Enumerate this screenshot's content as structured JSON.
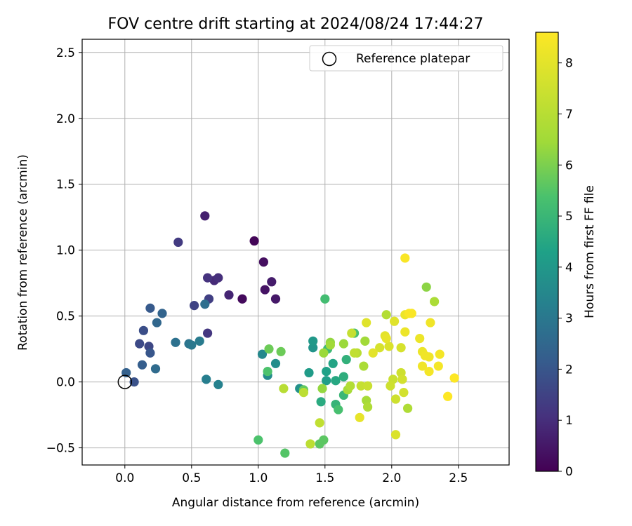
{
  "chart_data": {
    "type": "scatter",
    "title": "FOV centre drift starting at 2024/08/24 17:44:27",
    "xlabel": "Angular distance from reference (arcmin)",
    "ylabel": "Rotation from reference (arcmin)",
    "xlim": [
      -0.32,
      2.88
    ],
    "ylim": [
      -0.63,
      2.6
    ],
    "xticks": [
      0.0,
      0.5,
      1.0,
      1.5,
      2.0,
      2.5
    ],
    "yticks": [
      -0.5,
      0.0,
      0.5,
      1.0,
      1.5,
      2.0,
      2.5
    ],
    "xtick_labels": [
      "0.0",
      "0.5",
      "1.0",
      "1.5",
      "2.0",
      "2.5"
    ],
    "ytick_labels": [
      "−0.5",
      "0.0",
      "0.5",
      "1.0",
      "1.5",
      "2.0",
      "2.5"
    ],
    "grid": true,
    "legend": {
      "position": "top-right",
      "label": "Reference platepar"
    },
    "reference_point": {
      "x": 0.0,
      "y": 0.0
    },
    "colorbar": {
      "label": "Hours from first FF file",
      "min": 0.0,
      "max": 8.6,
      "ticks": [
        0,
        1,
        2,
        3,
        4,
        5,
        6,
        7,
        8
      ],
      "tick_labels": [
        "0",
        "1",
        "2",
        "3",
        "4",
        "5",
        "6",
        "7",
        "8"
      ],
      "colormap": "viridis"
    },
    "points": [
      {
        "x": 0.97,
        "y": 1.07,
        "h": 0.1
      },
      {
        "x": 0.88,
        "y": 0.63,
        "h": 0.2
      },
      {
        "x": 1.04,
        "y": 0.91,
        "h": 0.3
      },
      {
        "x": 1.05,
        "y": 0.7,
        "h": 0.4
      },
      {
        "x": 1.13,
        "y": 0.63,
        "h": 0.5
      },
      {
        "x": 1.1,
        "y": 0.76,
        "h": 0.6
      },
      {
        "x": 0.6,
        "y": 1.26,
        "h": 0.7
      },
      {
        "x": 0.78,
        "y": 0.66,
        "h": 0.8
      },
      {
        "x": 0.67,
        "y": 0.77,
        "h": 0.9
      },
      {
        "x": 0.7,
        "y": 0.79,
        "h": 1.0
      },
      {
        "x": 0.62,
        "y": 0.79,
        "h": 1.1
      },
      {
        "x": 0.62,
        "y": 0.37,
        "h": 1.2
      },
      {
        "x": 0.4,
        "y": 1.06,
        "h": 1.3
      },
      {
        "x": 0.63,
        "y": 0.63,
        "h": 1.4
      },
      {
        "x": 0.52,
        "y": 0.58,
        "h": 1.5
      },
      {
        "x": 0.18,
        "y": 0.27,
        "h": 1.6
      },
      {
        "x": 0.11,
        "y": 0.29,
        "h": 1.7
      },
      {
        "x": 0.14,
        "y": 0.39,
        "h": 1.8
      },
      {
        "x": 0.07,
        "y": 0.0,
        "h": 1.9
      },
      {
        "x": 0.19,
        "y": 0.22,
        "h": 2.0
      },
      {
        "x": 0.19,
        "y": 0.56,
        "h": 2.1
      },
      {
        "x": 0.13,
        "y": 0.13,
        "h": 2.2
      },
      {
        "x": 0.01,
        "y": 0.07,
        "h": 2.3
      },
      {
        "x": 0.28,
        "y": 0.52,
        "h": 2.4
      },
      {
        "x": 0.24,
        "y": 0.45,
        "h": 2.5
      },
      {
        "x": 0.23,
        "y": 0.1,
        "h": 2.6
      },
      {
        "x": 0.6,
        "y": 0.59,
        "h": 2.7
      },
      {
        "x": 0.38,
        "y": 0.3,
        "h": 2.8
      },
      {
        "x": 0.48,
        "y": 0.29,
        "h": 2.9
      },
      {
        "x": 0.5,
        "y": 0.28,
        "h": 3.0
      },
      {
        "x": 0.56,
        "y": 0.31,
        "h": 3.1
      },
      {
        "x": 0.61,
        "y": 0.02,
        "h": 3.2
      },
      {
        "x": 0.7,
        "y": -0.02,
        "h": 3.3
      },
      {
        "x": 1.03,
        "y": 0.21,
        "h": 3.5
      },
      {
        "x": 1.07,
        "y": 0.05,
        "h": 3.6
      },
      {
        "x": 1.13,
        "y": 0.14,
        "h": 3.7
      },
      {
        "x": 1.31,
        "y": -0.05,
        "h": 3.8
      },
      {
        "x": 1.41,
        "y": 0.26,
        "h": 3.9
      },
      {
        "x": 1.41,
        "y": 0.31,
        "h": 4.0
      },
      {
        "x": 1.38,
        "y": 0.07,
        "h": 4.1
      },
      {
        "x": 1.51,
        "y": 0.01,
        "h": 4.2
      },
      {
        "x": 1.51,
        "y": 0.08,
        "h": 4.3
      },
      {
        "x": 1.56,
        "y": 0.14,
        "h": 4.4
      },
      {
        "x": 1.58,
        "y": 0.01,
        "h": 4.5
      },
      {
        "x": 1.47,
        "y": -0.15,
        "h": 4.6
      },
      {
        "x": 1.64,
        "y": 0.04,
        "h": 4.7
      },
      {
        "x": 1.66,
        "y": 0.17,
        "h": 4.8
      },
      {
        "x": 1.58,
        "y": -0.17,
        "h": 4.9
      },
      {
        "x": 1.64,
        "y": -0.1,
        "h": 5.0
      },
      {
        "x": 1.52,
        "y": 0.25,
        "h": 5.1
      },
      {
        "x": 1.5,
        "y": 0.63,
        "h": 5.2
      },
      {
        "x": 1.72,
        "y": 0.37,
        "h": 5.3
      },
      {
        "x": 1.6,
        "y": -0.21,
        "h": 5.3
      },
      {
        "x": 1.07,
        "y": 0.08,
        "h": 5.4
      },
      {
        "x": 1.0,
        "y": -0.44,
        "h": 5.4
      },
      {
        "x": 1.2,
        "y": -0.54,
        "h": 5.5
      },
      {
        "x": 1.46,
        "y": -0.47,
        "h": 5.6
      },
      {
        "x": 1.49,
        "y": -0.44,
        "h": 5.6
      },
      {
        "x": 1.34,
        "y": -0.06,
        "h": 5.7
      },
      {
        "x": 1.08,
        "y": 0.25,
        "h": 5.8
      },
      {
        "x": 1.17,
        "y": 0.23,
        "h": 5.8
      },
      {
        "x": 2.26,
        "y": 0.72,
        "h": 6.2
      },
      {
        "x": 1.48,
        "y": -0.05,
        "h": 6.3
      },
      {
        "x": 1.54,
        "y": 0.3,
        "h": 6.3
      },
      {
        "x": 1.64,
        "y": 0.29,
        "h": 6.4
      },
      {
        "x": 1.49,
        "y": 0.22,
        "h": 6.4
      },
      {
        "x": 1.54,
        "y": 0.28,
        "h": 6.5
      },
      {
        "x": 1.8,
        "y": 0.31,
        "h": 6.5
      },
      {
        "x": 1.81,
        "y": -0.14,
        "h": 6.6
      },
      {
        "x": 1.67,
        "y": -0.06,
        "h": 6.6
      },
      {
        "x": 1.79,
        "y": 0.12,
        "h": 6.7
      },
      {
        "x": 2.32,
        "y": 0.61,
        "h": 6.7
      },
      {
        "x": 2.12,
        "y": -0.2,
        "h": 6.8
      },
      {
        "x": 1.82,
        "y": -0.19,
        "h": 6.8
      },
      {
        "x": 1.96,
        "y": 0.51,
        "h": 6.9
      },
      {
        "x": 1.69,
        "y": -0.03,
        "h": 6.9
      },
      {
        "x": 1.74,
        "y": 0.22,
        "h": 7.0
      },
      {
        "x": 1.19,
        "y": -0.05,
        "h": 7.0
      },
      {
        "x": 1.34,
        "y": -0.08,
        "h": 7.1
      },
      {
        "x": 1.39,
        "y": -0.47,
        "h": 7.1
      },
      {
        "x": 1.46,
        "y": -0.31,
        "h": 7.2
      },
      {
        "x": 1.72,
        "y": 0.22,
        "h": 7.2
      },
      {
        "x": 1.7,
        "y": 0.37,
        "h": 7.3
      },
      {
        "x": 1.77,
        "y": -0.03,
        "h": 7.3
      },
      {
        "x": 1.82,
        "y": -0.03,
        "h": 7.4
      },
      {
        "x": 2.01,
        "y": 0.02,
        "h": 7.4
      },
      {
        "x": 1.99,
        "y": -0.03,
        "h": 7.5
      },
      {
        "x": 2.03,
        "y": -0.13,
        "h": 7.5
      },
      {
        "x": 2.07,
        "y": 0.07,
        "h": 7.5
      },
      {
        "x": 2.08,
        "y": 0.02,
        "h": 7.6
      },
      {
        "x": 2.09,
        "y": -0.08,
        "h": 7.6
      },
      {
        "x": 2.07,
        "y": 0.26,
        "h": 7.7
      },
      {
        "x": 1.91,
        "y": 0.26,
        "h": 7.7
      },
      {
        "x": 1.98,
        "y": 0.27,
        "h": 7.8
      },
      {
        "x": 2.03,
        "y": -0.4,
        "h": 7.8
      },
      {
        "x": 2.02,
        "y": 0.46,
        "h": 7.9
      },
      {
        "x": 1.81,
        "y": 0.45,
        "h": 7.9
      },
      {
        "x": 1.86,
        "y": 0.22,
        "h": 8.0
      },
      {
        "x": 1.95,
        "y": 0.35,
        "h": 8.0
      },
      {
        "x": 1.76,
        "y": -0.27,
        "h": 8.1
      },
      {
        "x": 1.96,
        "y": 0.33,
        "h": 8.1
      },
      {
        "x": 2.1,
        "y": 0.38,
        "h": 8.2
      },
      {
        "x": 2.1,
        "y": 0.51,
        "h": 8.2
      },
      {
        "x": 2.21,
        "y": 0.33,
        "h": 8.2
      },
      {
        "x": 2.23,
        "y": 0.23,
        "h": 8.2
      },
      {
        "x": 2.25,
        "y": 0.2,
        "h": 8.3
      },
      {
        "x": 2.23,
        "y": 0.12,
        "h": 8.3
      },
      {
        "x": 2.28,
        "y": 0.19,
        "h": 8.3
      },
      {
        "x": 2.29,
        "y": 0.45,
        "h": 8.3
      },
      {
        "x": 2.28,
        "y": 0.08,
        "h": 8.4
      },
      {
        "x": 2.35,
        "y": 0.12,
        "h": 8.4
      },
      {
        "x": 2.36,
        "y": 0.21,
        "h": 8.4
      },
      {
        "x": 2.13,
        "y": 0.52,
        "h": 8.5
      },
      {
        "x": 2.15,
        "y": 0.52,
        "h": 8.5
      },
      {
        "x": 2.1,
        "y": 0.94,
        "h": 8.5
      },
      {
        "x": 2.42,
        "y": -0.11,
        "h": 8.6
      },
      {
        "x": 2.47,
        "y": 0.03,
        "h": 8.6
      }
    ]
  }
}
